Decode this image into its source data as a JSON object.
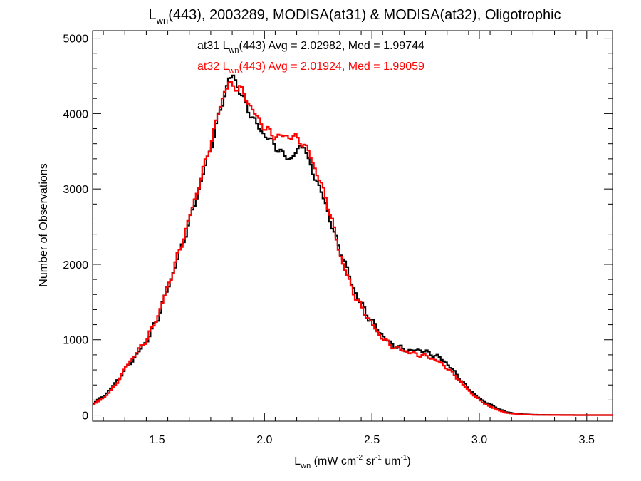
{
  "chart_data": {
    "type": "line",
    "title": {
      "pre": "L",
      "sub": "wn",
      "post": "(443), 2003289, MODISA(at31) & MODISA(at32), Oligotrophic"
    },
    "xlabel": {
      "pre": "L",
      "sub": "wn",
      "mid1": " (mW cm",
      "sup1": "-2",
      "mid2": " sr",
      "sup2": "-1",
      "mid3": " um",
      "sup3": "-1",
      "post": ")"
    },
    "ylabel": "Number of Observations",
    "xlim": [
      1.2,
      3.62
    ],
    "ylim": [
      -80,
      5100
    ],
    "xticks": [
      1.5,
      2.0,
      2.5,
      3.0,
      3.5
    ],
    "xtick_labels": [
      "1.5",
      "2.0",
      "2.5",
      "3.0",
      "3.5"
    ],
    "yticks": [
      0,
      1000,
      2000,
      3000,
      4000,
      5000
    ],
    "ytick_labels": [
      "0",
      "1000",
      "2000",
      "3000",
      "4000",
      "5000"
    ],
    "grid": false,
    "annotations": [
      {
        "name": "at31-stats",
        "color": "#000000",
        "pre": "at31 L",
        "sub": "wn",
        "post": "(443) Avg = 2.02982, Med = 1.99744"
      },
      {
        "name": "at32-stats",
        "color": "#ff0000",
        "pre": "at32 L",
        "sub": "wn",
        "post": "(443) Avg = 2.01924, Med = 1.99059"
      }
    ],
    "series": [
      {
        "color": "#000000",
        "points": [
          [
            1.2,
            160
          ],
          [
            1.25,
            260
          ],
          [
            1.3,
            420
          ],
          [
            1.35,
            620
          ],
          [
            1.4,
            800
          ],
          [
            1.45,
            1000
          ],
          [
            1.5,
            1300
          ],
          [
            1.55,
            1720
          ],
          [
            1.6,
            2150
          ],
          [
            1.65,
            2600
          ],
          [
            1.7,
            3100
          ],
          [
            1.75,
            3600
          ],
          [
            1.78,
            3950
          ],
          [
            1.81,
            4250
          ],
          [
            1.83,
            4450
          ],
          [
            1.85,
            4500
          ],
          [
            1.88,
            4300
          ],
          [
            1.92,
            4050
          ],
          [
            1.96,
            3850
          ],
          [
            2.0,
            3700
          ],
          [
            2.04,
            3600
          ],
          [
            2.08,
            3450
          ],
          [
            2.12,
            3400
          ],
          [
            2.16,
            3550
          ],
          [
            2.18,
            3600
          ],
          [
            2.2,
            3350
          ],
          [
            2.24,
            3100
          ],
          [
            2.28,
            2800
          ],
          [
            2.32,
            2400
          ],
          [
            2.36,
            2100
          ],
          [
            2.4,
            1750
          ],
          [
            2.44,
            1500
          ],
          [
            2.48,
            1300
          ],
          [
            2.52,
            1150
          ],
          [
            2.56,
            1000
          ],
          [
            2.6,
            920
          ],
          [
            2.64,
            880
          ],
          [
            2.68,
            850
          ],
          [
            2.72,
            870
          ],
          [
            2.76,
            820
          ],
          [
            2.8,
            780
          ],
          [
            2.84,
            700
          ],
          [
            2.88,
            570
          ],
          [
            2.92,
            430
          ],
          [
            2.96,
            310
          ],
          [
            3.0,
            210
          ],
          [
            3.04,
            150
          ],
          [
            3.08,
            90
          ],
          [
            3.12,
            40
          ],
          [
            3.18,
            15
          ],
          [
            3.25,
            5
          ],
          [
            3.35,
            2
          ],
          [
            3.5,
            0
          ],
          [
            3.62,
            0
          ]
        ]
      },
      {
        "color": "#ff0000",
        "points": [
          [
            1.2,
            140
          ],
          [
            1.25,
            240
          ],
          [
            1.3,
            390
          ],
          [
            1.35,
            640
          ],
          [
            1.4,
            830
          ],
          [
            1.45,
            1020
          ],
          [
            1.5,
            1320
          ],
          [
            1.55,
            1750
          ],
          [
            1.6,
            2180
          ],
          [
            1.65,
            2650
          ],
          [
            1.7,
            3150
          ],
          [
            1.75,
            3650
          ],
          [
            1.78,
            4000
          ],
          [
            1.81,
            4300
          ],
          [
            1.83,
            4400
          ],
          [
            1.85,
            4350
          ],
          [
            1.88,
            4350
          ],
          [
            1.92,
            4150
          ],
          [
            1.96,
            3950
          ],
          [
            2.0,
            3800
          ],
          [
            2.04,
            3700
          ],
          [
            2.08,
            3700
          ],
          [
            2.12,
            3700
          ],
          [
            2.16,
            3650
          ],
          [
            2.2,
            3500
          ],
          [
            2.24,
            3200
          ],
          [
            2.28,
            2900
          ],
          [
            2.32,
            2450
          ],
          [
            2.36,
            2000
          ],
          [
            2.4,
            1700
          ],
          [
            2.44,
            1450
          ],
          [
            2.48,
            1280
          ],
          [
            2.52,
            1100
          ],
          [
            2.56,
            980
          ],
          [
            2.6,
            900
          ],
          [
            2.64,
            860
          ],
          [
            2.68,
            820
          ],
          [
            2.72,
            800
          ],
          [
            2.76,
            770
          ],
          [
            2.8,
            720
          ],
          [
            2.84,
            640
          ],
          [
            2.88,
            530
          ],
          [
            2.92,
            400
          ],
          [
            2.96,
            290
          ],
          [
            3.0,
            190
          ],
          [
            3.04,
            120
          ],
          [
            3.08,
            70
          ],
          [
            3.12,
            30
          ],
          [
            3.18,
            10
          ],
          [
            3.25,
            4
          ],
          [
            3.35,
            1
          ],
          [
            3.5,
            0
          ],
          [
            3.62,
            0
          ]
        ]
      }
    ]
  }
}
